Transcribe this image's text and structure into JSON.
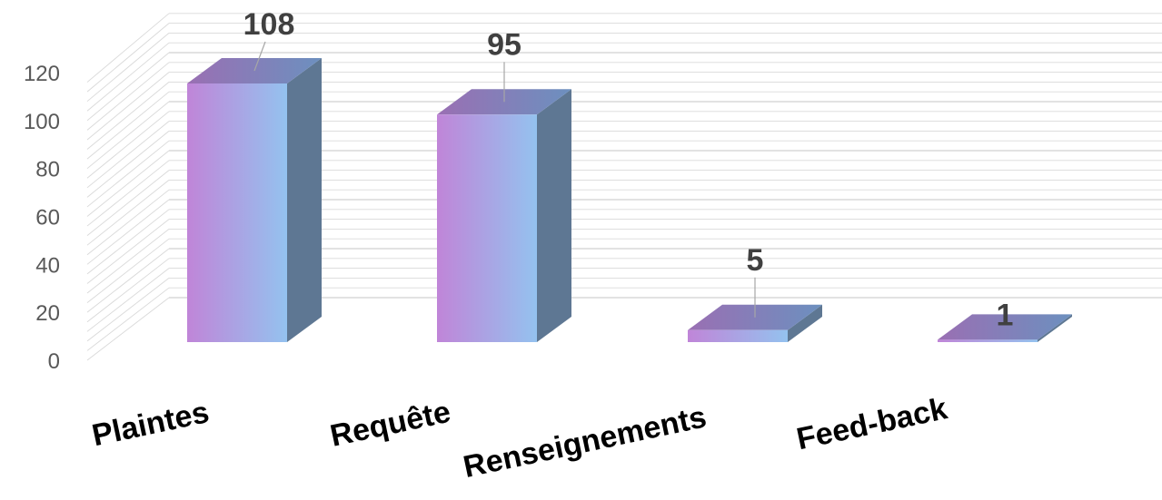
{
  "chart_data": {
    "type": "bar",
    "style": "3d-column",
    "categories": [
      "Plaintes",
      "Requête",
      "Renseignements",
      "Feed-back"
    ],
    "values": [
      108,
      95,
      5,
      1
    ],
    "title": "",
    "xlabel": "",
    "ylabel": "",
    "ylim": [
      0,
      120
    ],
    "yticks": [
      0,
      20,
      40,
      60,
      80,
      100,
      120
    ],
    "grid": true,
    "legend": "none",
    "data_labels": true,
    "colors": {
      "front_left": "#c085d8",
      "front_right": "#94c2ef",
      "side": "#5e7793",
      "top_left": "#9a6fb3",
      "top_right": "#6c90bf",
      "grid": "#d9d9d9",
      "tick_text": "#595959",
      "data_label_text": "#404040",
      "category_text": "#000000"
    }
  }
}
